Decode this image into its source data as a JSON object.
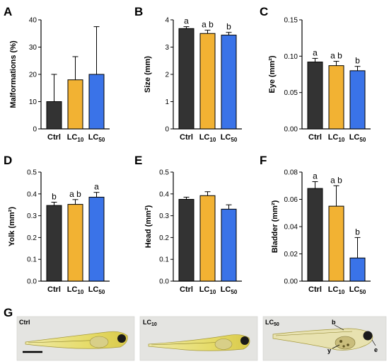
{
  "colors": {
    "Ctrl": "#333333",
    "LC10": "#f2b233",
    "LC50": "#3a73e8"
  },
  "categories": [
    {
      "main": "Ctrl",
      "sub": ""
    },
    {
      "main": "LC",
      "sub": "10"
    },
    {
      "main": "LC",
      "sub": "50"
    }
  ],
  "chart_data": [
    {
      "type": "bar",
      "panel": "A",
      "ylabel": "Malformations (%)",
      "ylim": [
        0,
        40
      ],
      "yticks": [
        0,
        10,
        20,
        30,
        40
      ],
      "tick_labels": [
        "0",
        "10",
        "20",
        "30",
        "40"
      ],
      "values": [
        10,
        18,
        20
      ],
      "errors": [
        10,
        8.5,
        17.5
      ],
      "letters": [
        "",
        "",
        ""
      ]
    },
    {
      "type": "bar",
      "panel": "B",
      "ylabel": "Size (mm)",
      "ylim": [
        0,
        4
      ],
      "yticks": [
        0,
        1,
        2,
        3,
        4
      ],
      "tick_labels": [
        "0",
        "1",
        "2",
        "3",
        "4"
      ],
      "values": [
        3.68,
        3.5,
        3.44
      ],
      "errors": [
        0.07,
        0.12,
        0.1
      ],
      "letters": [
        "a",
        "a b",
        "b"
      ]
    },
    {
      "type": "bar",
      "panel": "C",
      "ylabel": "Eye (mm²)",
      "ylim": [
        0,
        0.15
      ],
      "yticks": [
        0,
        0.05,
        0.1,
        0.15
      ],
      "tick_labels": [
        "0.00",
        "0.05",
        "0.10",
        "0.15"
      ],
      "values": [
        0.092,
        0.087,
        0.08
      ],
      "errors": [
        0.005,
        0.006,
        0.006
      ],
      "letters": [
        "a",
        "a b",
        "b"
      ]
    },
    {
      "type": "bar",
      "panel": "D",
      "ylabel": "Yolk (mm²)",
      "ylim": [
        0,
        0.5
      ],
      "yticks": [
        0,
        0.1,
        0.2,
        0.3,
        0.4,
        0.5
      ],
      "tick_labels": [
        "0.0",
        "0.1",
        "0.2",
        "0.3",
        "0.4",
        "0.5"
      ],
      "values": [
        0.347,
        0.352,
        0.385
      ],
      "errors": [
        0.015,
        0.022,
        0.022
      ],
      "letters": [
        "b",
        "a b",
        "a"
      ]
    },
    {
      "type": "bar",
      "panel": "E",
      "ylabel": "Head (mm²)",
      "ylim": [
        0,
        0.5
      ],
      "yticks": [
        0,
        0.1,
        0.2,
        0.3,
        0.4,
        0.5
      ],
      "tick_labels": [
        "0.0",
        "0.1",
        "0.2",
        "0.3",
        "0.4",
        "0.5"
      ],
      "values": [
        0.375,
        0.392,
        0.33
      ],
      "errors": [
        0.01,
        0.018,
        0.02
      ],
      "letters": [
        "",
        "",
        ""
      ]
    },
    {
      "type": "bar",
      "panel": "F",
      "ylabel": "Bladder (mm²)",
      "ylim": [
        0,
        0.08
      ],
      "yticks": [
        0,
        0.02,
        0.04,
        0.06,
        0.08
      ],
      "tick_labels": [
        "0.00",
        "0.02",
        "0.04",
        "0.06",
        "0.08"
      ],
      "values": [
        0.068,
        0.055,
        0.017
      ],
      "errors": [
        0.005,
        0.015,
        0.015
      ],
      "letters": [
        "a",
        "a b",
        "b"
      ]
    }
  ],
  "photos": {
    "panel": "G",
    "items": [
      {
        "main": "Ctrl",
        "sub": ""
      },
      {
        "main": "LC",
        "sub": "10"
      },
      {
        "main": "LC",
        "sub": "50"
      }
    ],
    "annotations": [
      "b",
      "y",
      "e"
    ]
  }
}
